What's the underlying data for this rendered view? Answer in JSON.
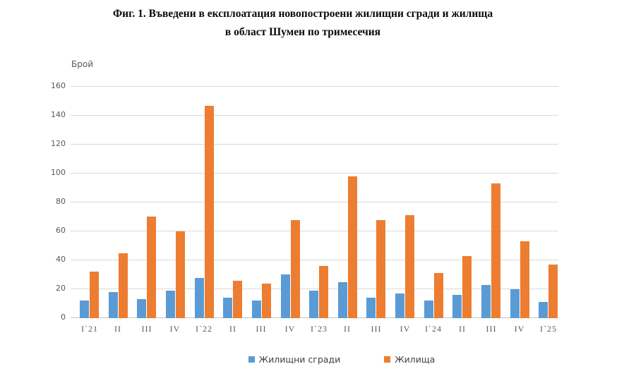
{
  "title": {
    "line1": "Фиг. 1. Въведени в експлоатация новопостроени жилищни сгради и жилища",
    "line2": "в област Шумен по тримесечия"
  },
  "y_axis_label": "Брой",
  "chart_data": {
    "type": "bar",
    "title": "Фиг. 1. Въведени в експлоатация новопостроени жилищни сгради и жилища в област Шумен по тримесечия",
    "xlabel": "",
    "ylabel": "Брой",
    "ylim": [
      0,
      160
    ],
    "y_ticks": [
      0,
      20,
      40,
      60,
      80,
      100,
      120,
      140,
      160
    ],
    "grid": true,
    "legend_position": "bottom",
    "categories": [
      "I`21",
      "II",
      "III",
      "IV",
      "I`22",
      "II",
      "III",
      "IV",
      "I`23",
      "II",
      "III",
      "IV",
      "I`24",
      "II",
      "III",
      "IV",
      "I`25"
    ],
    "series": [
      {
        "key": "buildings",
        "name": "Жилищни сгради",
        "color": "#5B9BD5",
        "values": [
          12,
          18,
          13,
          19,
          28,
          14,
          12,
          30,
          19,
          25,
          14,
          17,
          12,
          16,
          23,
          20,
          11
        ]
      },
      {
        "key": "dwellings",
        "name": "Жилища",
        "color": "#ED7D31",
        "values": [
          32,
          45,
          70,
          60,
          147,
          26,
          24,
          68,
          36,
          98,
          68,
          71,
          31,
          43,
          93,
          53,
          37
        ]
      }
    ]
  },
  "colors": {
    "background": "#FFFFFF",
    "gridline": "#D9D9D9",
    "axis_line": "#C6C6C6",
    "tick_text": "#595959",
    "title_text": "#0A0A0A",
    "legend_text": "#404040"
  }
}
